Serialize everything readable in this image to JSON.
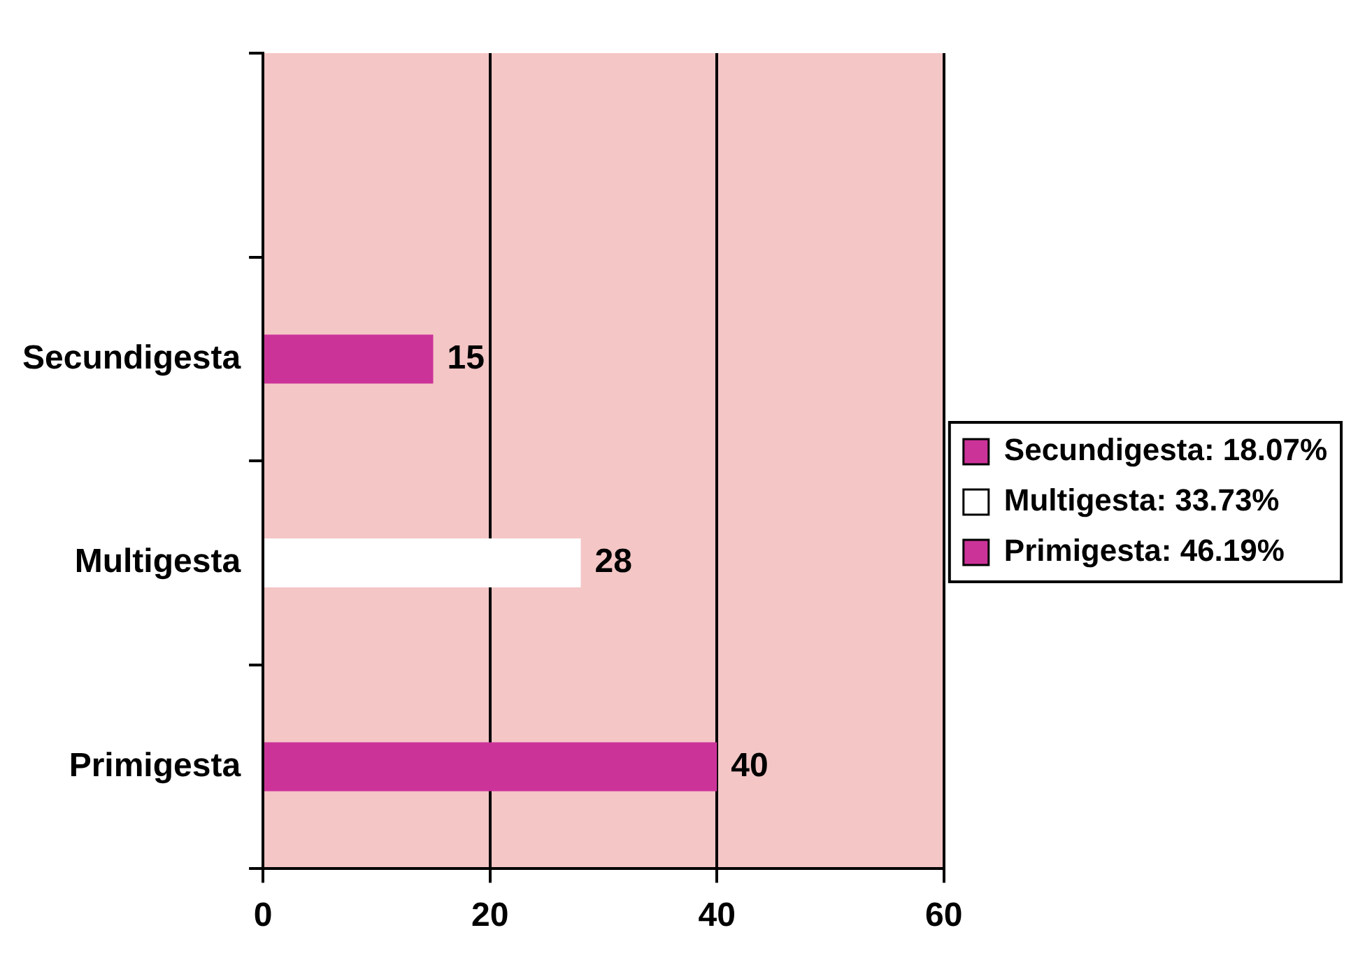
{
  "chart_data": {
    "type": "bar",
    "orientation": "horizontal",
    "categories": [
      null,
      "Secundigesta",
      "Multigesta",
      "Primigesta"
    ],
    "series": [
      {
        "name": "Secundigesta: 18.07%",
        "color": "#cc3399",
        "values": [
          null,
          15,
          null,
          null
        ]
      },
      {
        "name": "Multigesta: 33.73%",
        "color": "#ffffff",
        "values": [
          null,
          null,
          28,
          null
        ]
      },
      {
        "name": "Primigesta: 46.19%",
        "color": "#cc3399",
        "values": [
          null,
          null,
          null,
          40
        ]
      }
    ],
    "xlim": [
      0,
      60
    ],
    "xticks": [
      0,
      20,
      40,
      60
    ],
    "grid": "x",
    "legend": "right",
    "data_labels": true
  }
}
